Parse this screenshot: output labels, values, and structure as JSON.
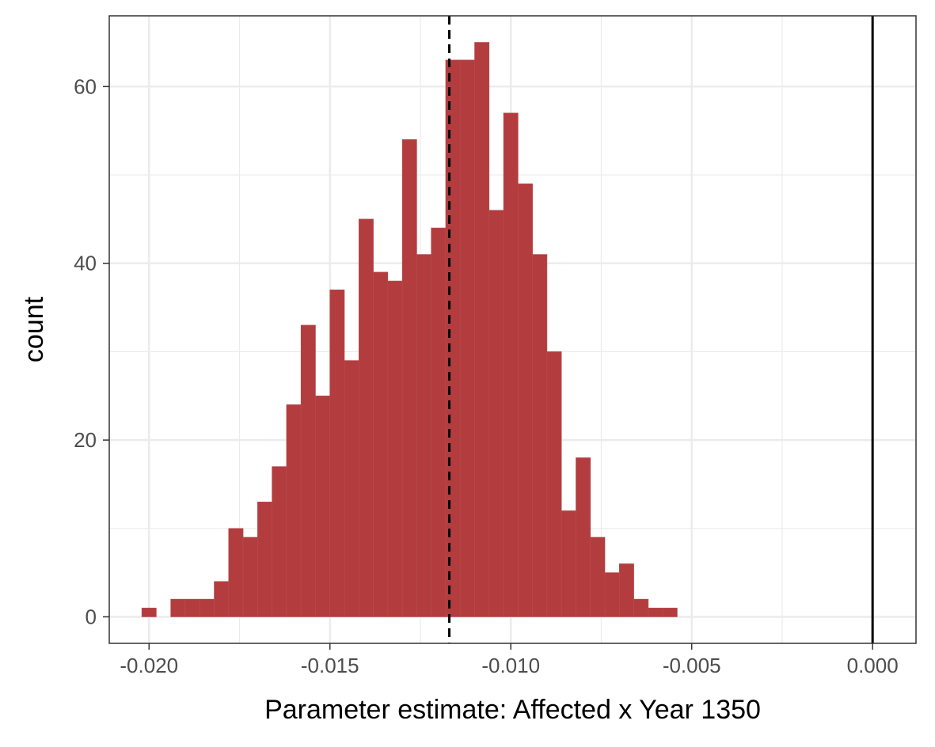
{
  "chart_data": {
    "type": "bar",
    "subtype": "histogram",
    "title": "",
    "xlabel": "Parameter estimate: Affected x Year 1350",
    "ylabel": "count",
    "xlim": [
      -0.0211,
      0.0012
    ],
    "ylim": [
      -3,
      68
    ],
    "xticks": [
      -0.02,
      -0.015,
      -0.01,
      -0.005,
      0.0
    ],
    "xtick_labels": [
      "-0.020",
      "-0.015",
      "-0.010",
      "-0.005",
      "0.000"
    ],
    "yticks": [
      0,
      20,
      40,
      60
    ],
    "ytick_labels": [
      "0",
      "20",
      "40",
      "60"
    ],
    "grid": true,
    "bar_color": "#b33c3e",
    "bin_width": 0.0004,
    "bins_start": [
      -0.0202,
      -0.0198,
      -0.0194,
      -0.019,
      -0.0186,
      -0.0182,
      -0.0178,
      -0.0174,
      -0.017,
      -0.0166,
      -0.0162,
      -0.0158,
      -0.0154,
      -0.015,
      -0.0146,
      -0.0142,
      -0.0138,
      -0.0134,
      -0.013,
      -0.0126,
      -0.0122,
      -0.0118,
      -0.0114,
      -0.011,
      -0.0106,
      -0.0102,
      -0.0098,
      -0.0094,
      -0.009,
      -0.0086,
      -0.0082,
      -0.0078,
      -0.0074,
      -0.007,
      -0.0066,
      -0.0062,
      -0.0058,
      -0.0054,
      -0.005
    ],
    "counts": [
      1,
      0,
      2,
      2,
      2,
      4,
      10,
      9,
      13,
      17,
      24,
      33,
      25,
      37,
      29,
      45,
      39,
      38,
      54,
      41,
      44,
      63,
      63,
      65,
      46,
      57,
      49,
      41,
      30,
      12,
      18,
      9,
      5,
      6,
      2,
      1,
      1,
      0,
      0
    ],
    "reference_lines": [
      {
        "x": -0.0117,
        "style": "dashed",
        "color": "#000000"
      },
      {
        "x": 0.0,
        "style": "solid",
        "color": "#000000"
      }
    ]
  }
}
